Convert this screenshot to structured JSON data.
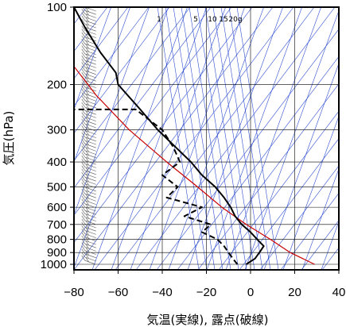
{
  "chart_data": {
    "type": "line",
    "subtype": "skew-T log-P",
    "xlabel": "気温(実線), 露点(破線)",
    "ylabel": "気圧(hPa)",
    "x_ticks": [
      -80,
      -60,
      -40,
      -20,
      0,
      20,
      40
    ],
    "x_tick_labels": [
      "−80",
      "−60",
      "−40",
      "−20",
      "0",
      "20",
      "40"
    ],
    "y_ticks": [
      100,
      200,
      300,
      400,
      500,
      600,
      700,
      800,
      900,
      1000
    ],
    "y_tick_labels": [
      "100",
      "200",
      "300",
      "400",
      "500",
      "600",
      "700",
      "800",
      "900",
      "1000"
    ],
    "xlim": [
      -80,
      40
    ],
    "ylim": [
      1050,
      100
    ],
    "y_scale": "log",
    "mixing_ratio_labels": [
      "1",
      "5",
      "10",
      "15",
      "20g"
    ],
    "series": [
      {
        "role": "temperature",
        "style": "solid",
        "color": "#000000",
        "points": [
          [
            -2,
            1000
          ],
          [
            2,
            950
          ],
          [
            4,
            900
          ],
          [
            6,
            850
          ],
          [
            3,
            800
          ],
          [
            0,
            750
          ],
          [
            -4,
            700
          ],
          [
            -7,
            650
          ],
          [
            -9,
            600
          ],
          [
            -12,
            550
          ],
          [
            -16,
            500
          ],
          [
            -22,
            450
          ],
          [
            -27,
            400
          ],
          [
            -34,
            350
          ],
          [
            -42,
            300
          ],
          [
            -50,
            250
          ],
          [
            -60,
            200
          ],
          [
            -61,
            180
          ],
          [
            -68,
            150
          ],
          [
            -75,
            120
          ],
          [
            -80,
            100
          ]
        ]
      },
      {
        "role": "dewpoint",
        "style": "dashed",
        "color": "#000000",
        "points": [
          [
            -6,
            1000
          ],
          [
            -8,
            950
          ],
          [
            -10,
            900
          ],
          [
            -12,
            850
          ],
          [
            -15,
            800
          ],
          [
            -22,
            750
          ],
          [
            -18,
            700
          ],
          [
            -30,
            650
          ],
          [
            -22,
            600
          ],
          [
            -38,
            550
          ],
          [
            -33,
            500
          ],
          [
            -40,
            450
          ],
          [
            -32,
            400
          ],
          [
            -35,
            350
          ],
          [
            -40,
            300
          ],
          [
            -52,
            250
          ],
          [
            -80,
            250
          ]
        ]
      },
      {
        "role": "parcel",
        "style": "solid",
        "color": "#cc0000",
        "points": [
          [
            29,
            1000
          ],
          [
            18,
            900
          ],
          [
            9,
            800
          ],
          [
            -2,
            700
          ],
          [
            -13,
            600
          ],
          [
            -24,
            500
          ],
          [
            -38,
            400
          ],
          [
            -55,
            300
          ],
          [
            -70,
            220
          ],
          [
            -80,
            170
          ],
          [
            -84,
            150
          ]
        ]
      }
    ],
    "wind_barbs": "left side, x = -70, from 100 to 1000 hPa",
    "colors": {
      "background_lines": "#2f4fd1",
      "grid": "#000000",
      "parcel": "#cc0000"
    }
  }
}
